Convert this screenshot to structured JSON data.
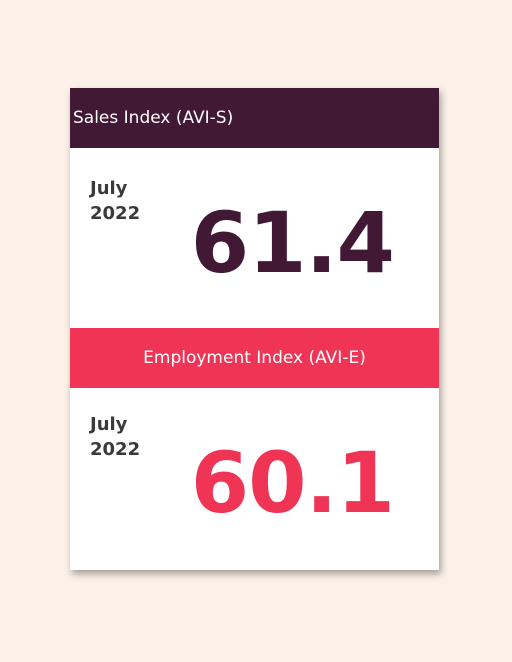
{
  "sales": {
    "title": "Sales Index (AVI-S)",
    "month": "July",
    "year": "2022",
    "value": "61.4"
  },
  "employment": {
    "title": "Employment Index (AVI-E)",
    "month": "July",
    "year": "2022",
    "value": "60.1"
  },
  "colors": {
    "background": "#fbf1e8",
    "sales_accent": "#421935",
    "employment_accent": "#ef3455"
  }
}
